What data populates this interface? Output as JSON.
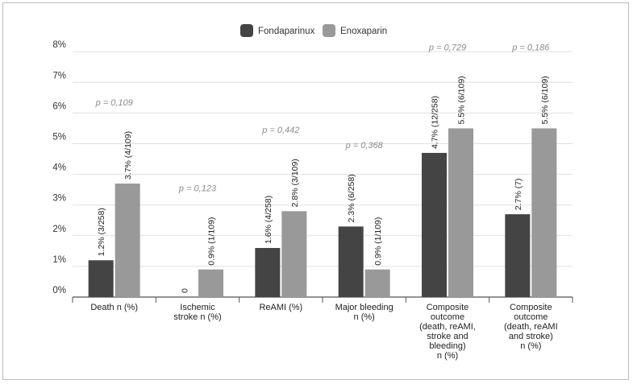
{
  "chart_data": {
    "type": "bar",
    "title": "",
    "xlabel": "",
    "ylabel": "",
    "ylim": [
      0,
      8
    ],
    "yticks": [
      "0%",
      "1%",
      "2%",
      "3%",
      "4%",
      "5%",
      "6%",
      "7%",
      "8%"
    ],
    "grid": true,
    "legend_position": "top-center",
    "categories": [
      [
        "Death n (%)"
      ],
      [
        "Ischemic",
        "stroke n (%)"
      ],
      [
        "ReAMI (%)"
      ],
      [
        "Major bleeding",
        "n (%)"
      ],
      [
        "Composite",
        "outcome",
        "(death, reAMI,",
        "stroke and",
        "bleeding)",
        "n (%)"
      ],
      [
        "Composite",
        "outcome",
        "(death, reAMI",
        "and stroke)",
        "n (%)"
      ]
    ],
    "series": [
      {
        "name": "Fondaparinux",
        "color": "#444444",
        "values": [
          1.2,
          0,
          1.6,
          2.3,
          4.7,
          2.7
        ],
        "labels": [
          "1.2% (3/258)",
          "0",
          "1.6% (4/258)",
          "2.3% (6/258)",
          "4.7% (12/258)",
          "2.7% (7)"
        ]
      },
      {
        "name": "Enoxaparin",
        "color": "#999999",
        "values": [
          3.7,
          0.9,
          2.8,
          0.9,
          5.5,
          5.5
        ],
        "labels": [
          "3.7% (4/109)",
          "0.9% (1/109)",
          "2.8% (3/109)",
          "0.9% (1/109)",
          "5.5% (6/109)",
          "5.5% (6/109)"
        ]
      }
    ],
    "p_values": [
      "p = 0,109",
      "p = 0,123",
      "p = 0,442",
      "p = 0,368",
      "p = 0,729",
      "p = 0,186"
    ]
  }
}
